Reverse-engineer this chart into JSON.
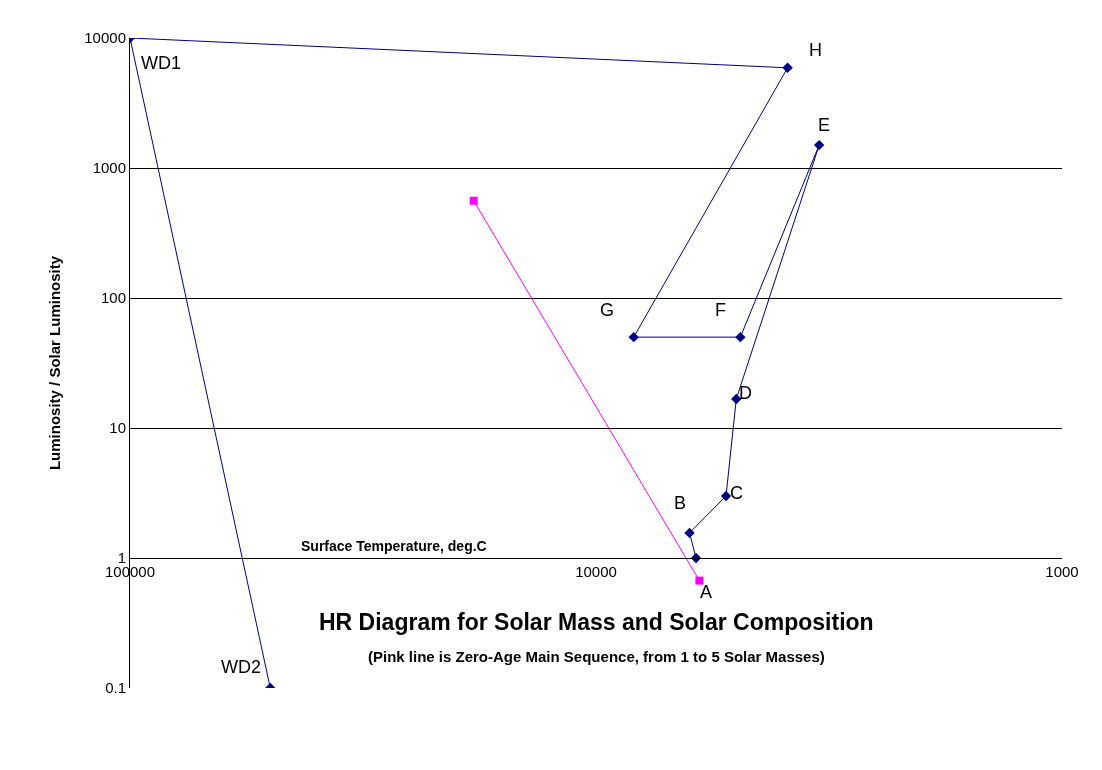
{
  "chart_data": {
    "type": "line",
    "title": "HR Diagram for Solar Mass and Solar Composition",
    "subtitle": "(Pink line is Zero-Age Main Sequence, from 1 to 5 Solar Masses)",
    "xlabel": "Surface Temperature, deg.C",
    "ylabel": "Luminosity / Solar Luminosity",
    "series": [
      {
        "color": "#000080",
        "marker": "diamond",
        "x": [
          6100,
          6300,
          5260,
          5000,
          3320,
          4900,
          8300,
          3880,
          100000,
          50000
        ],
        "values": [
          1,
          1.56,
          3.0,
          16.7,
          1500,
          50,
          50,
          5900,
          10000,
          0.1
        ]
      },
      {
        "color": "#ff00ff",
        "marker": "square",
        "x": [
          18300,
          6000
        ],
        "values": [
          560,
          0.67
        ]
      }
    ],
    "annotations": [
      {
        "text": "A",
        "x": 6100,
        "y": 1
      },
      {
        "text": "B",
        "x": 6300,
        "y": 1.56
      },
      {
        "text": "C",
        "x": 5260,
        "y": 3.0
      },
      {
        "text": "D",
        "x": 5000,
        "y": 16.7
      },
      {
        "text": "E",
        "x": 3320,
        "y": 1500
      },
      {
        "text": "F",
        "x": 4900,
        "y": 50
      },
      {
        "text": "G",
        "x": 8300,
        "y": 50
      },
      {
        "text": "H",
        "x": 3880,
        "y": 5900
      },
      {
        "text": "WD1",
        "x": 100000,
        "y": 10000
      },
      {
        "text": "WD2",
        "x": 50000,
        "y": 0.1
      }
    ],
    "log": "xy",
    "xlim": [
      100000,
      1000
    ],
    "xticks": [
      100000,
      10000,
      1000
    ],
    "ylim": [
      0.1,
      10000
    ],
    "yticks": [
      0.1,
      1,
      10,
      100,
      1000,
      10000
    ],
    "grid": "y"
  }
}
